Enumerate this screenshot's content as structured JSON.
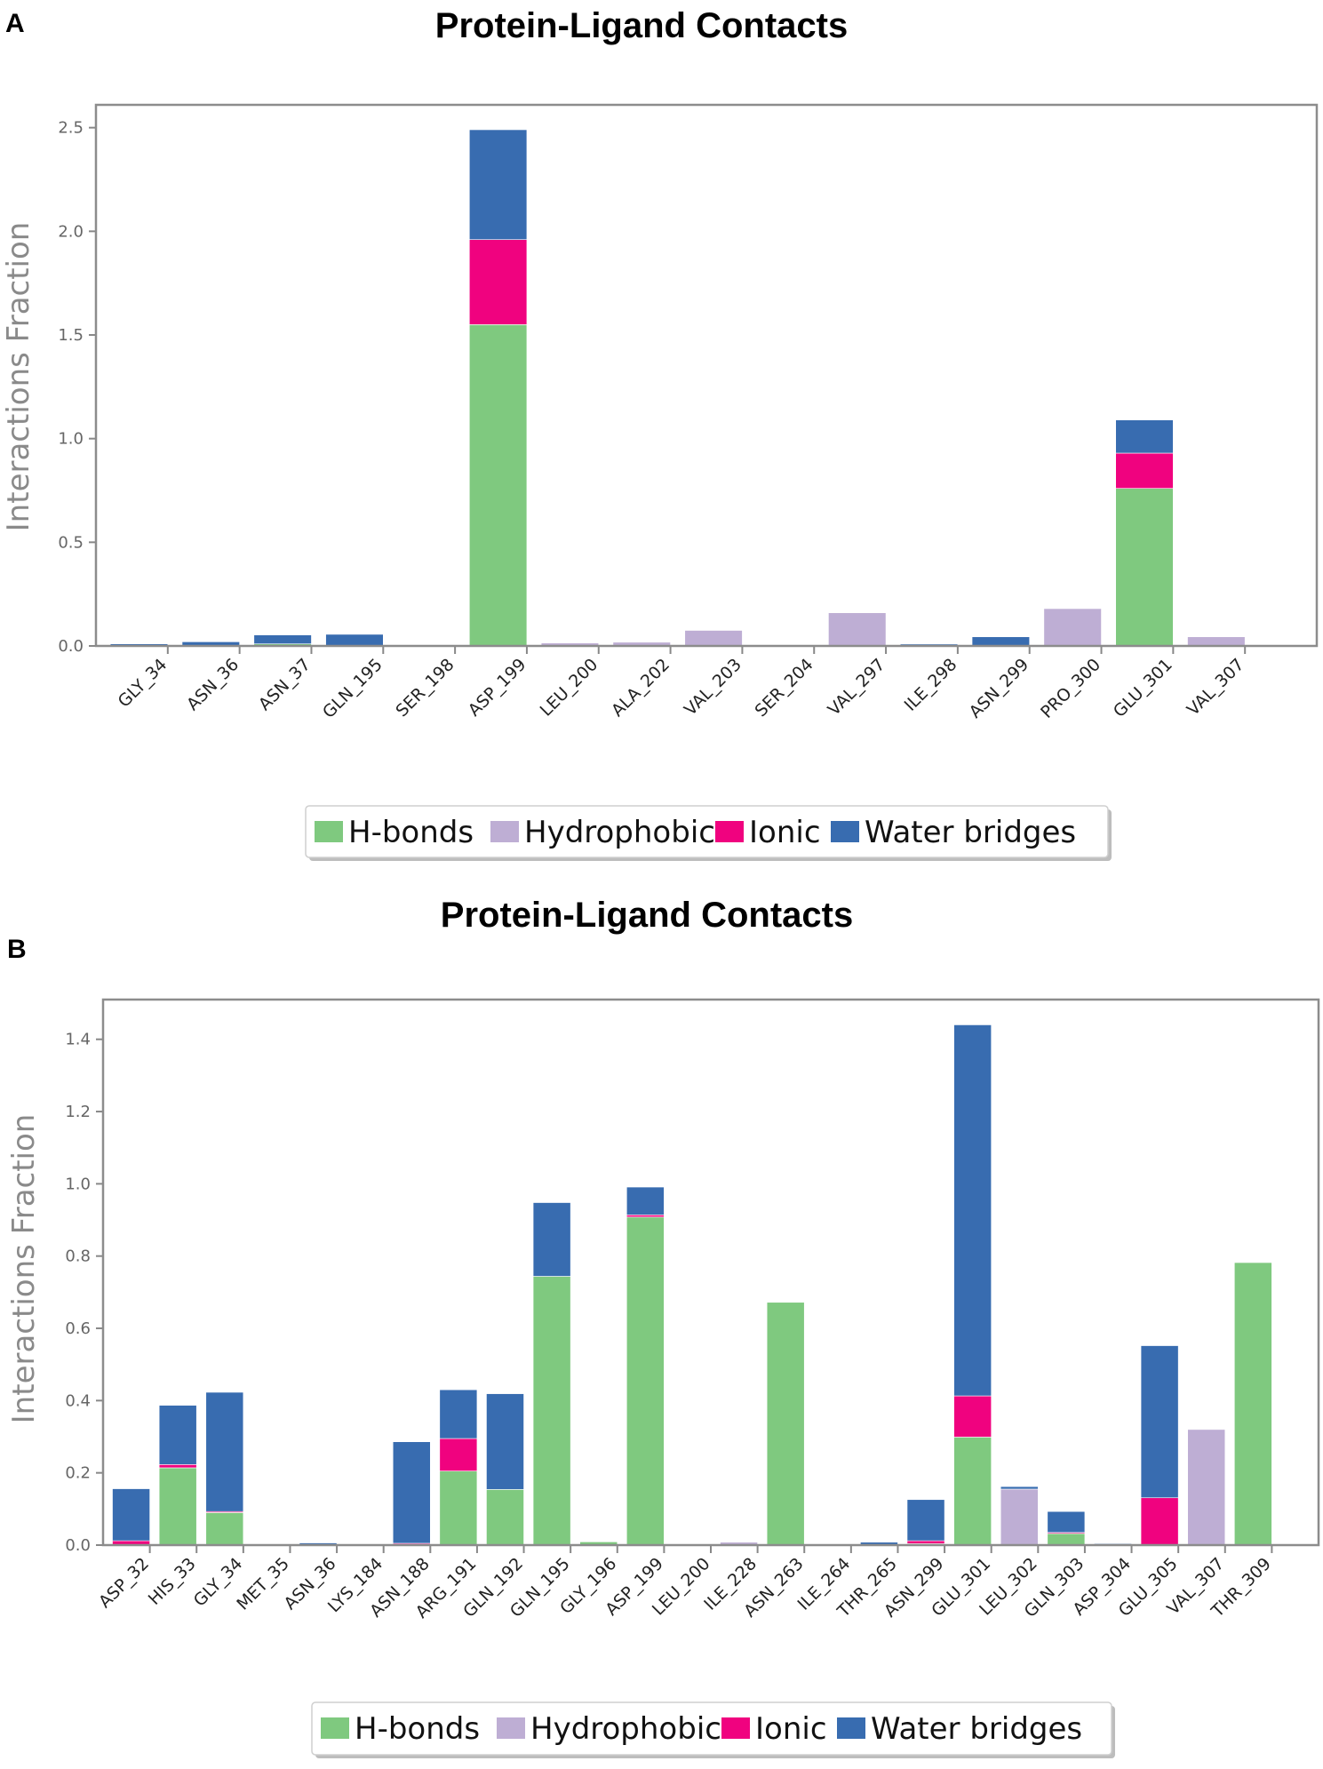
{
  "chart_data": [
    {
      "panel": "A",
      "type": "bar",
      "stacked": true,
      "title": "Protein-Ligand Contacts",
      "xlabel": "",
      "ylabel": "Interactions Fraction",
      "ylim": [
        0,
        2.61
      ],
      "yticks": [
        "0.0",
        "0.5",
        "1.0",
        "1.5",
        "2.0",
        "2.5"
      ],
      "ytick_values": [
        0,
        0.5,
        1.0,
        1.5,
        2.0,
        2.5
      ],
      "legend_position": "bottom-center",
      "categories": [
        "GLY_34",
        "ASN_36",
        "ASN_37",
        "GLN_195",
        "SER_198",
        "ASP_199",
        "LEU_200",
        "ALA_202",
        "VAL_203",
        "SER_204",
        "VAL_297",
        "ILE_298",
        "ASN_299",
        "PRO_300",
        "GLU_301",
        "VAL_307"
      ],
      "series": [
        {
          "name": "H-bonds",
          "color": "#7fc97f",
          "values": [
            0,
            0,
            0.01,
            0,
            0,
            1.55,
            0,
            0,
            0,
            0,
            0,
            0,
            0,
            0,
            0.76,
            0
          ]
        },
        {
          "name": "Hydrophobic",
          "color": "#beaed4",
          "values": [
            0,
            0,
            0,
            0,
            0.005,
            0,
            0.014,
            0.018,
            0.075,
            0.005,
            0.16,
            0,
            0,
            0.18,
            0,
            0.044
          ]
        },
        {
          "name": "Ionic",
          "color": "#f0027f",
          "values": [
            0,
            0,
            0,
            0,
            0,
            0.41,
            0,
            0,
            0,
            0,
            0,
            0,
            0,
            0,
            0.17,
            0
          ]
        },
        {
          "name": "Water bridges",
          "color": "#386cb0",
          "values": [
            0.01,
            0.02,
            0.043,
            0.056,
            0,
            0.53,
            0,
            0,
            0,
            0,
            0,
            0.009,
            0.044,
            0,
            0.16,
            0
          ]
        }
      ]
    },
    {
      "panel": "B",
      "type": "bar",
      "stacked": true,
      "title": "Protein-Ligand Contacts",
      "xlabel": "",
      "ylabel": "Interactions Fraction",
      "ylim": [
        0,
        1.51
      ],
      "yticks": [
        "0.0",
        "0.2",
        "0.4",
        "0.6",
        "0.8",
        "1.0",
        "1.2",
        "1.4"
      ],
      "ytick_values": [
        0,
        0.2,
        0.4,
        0.6,
        0.8,
        1.0,
        1.2,
        1.4
      ],
      "legend_position": "bottom-center",
      "categories": [
        "ASP_32",
        "HIS_33",
        "GLY_34",
        "MET_35",
        "ASN_36",
        "LYS_184",
        "ASN_188",
        "ARG_191",
        "GLN_192",
        "GLN_195",
        "GLY_196",
        "ASP_199",
        "LEU_200",
        "ILE_228",
        "ASN_263",
        "ILE_264",
        "THR_265",
        "ASN_299",
        "GLU_301",
        "LEU_302",
        "GLN_303",
        "ASP_304",
        "GLU_305",
        "VAL_307",
        "THR_309"
      ],
      "series": [
        {
          "name": "H-bonds",
          "color": "#7fc97f",
          "values": [
            0,
            0.214,
            0.09,
            0,
            0,
            0,
            0,
            0.205,
            0.154,
            0.744,
            0.009,
            0.908,
            0,
            0,
            0.672,
            0,
            0,
            0.004,
            0.299,
            0,
            0.032,
            0,
            0,
            0,
            0.782
          ]
        },
        {
          "name": "Hydrophobic",
          "color": "#beaed4",
          "values": [
            0,
            0,
            0,
            0,
            0,
            0,
            0,
            0,
            0,
            0,
            0,
            0,
            0,
            0.008,
            0,
            0,
            0,
            0,
            0,
            0.155,
            0,
            0,
            0,
            0.32,
            0
          ]
        },
        {
          "name": "Ionic",
          "color": "#f0027f",
          "values": [
            0.012,
            0.009,
            0.003,
            0,
            0,
            0,
            0.005,
            0.09,
            0,
            0,
            0,
            0.006,
            0,
            0,
            0,
            0,
            0,
            0.008,
            0.114,
            0,
            0.003,
            0,
            0.131,
            0,
            0
          ]
        },
        {
          "name": "Water bridges",
          "color": "#386cb0",
          "values": [
            0.144,
            0.164,
            0.33,
            0.003,
            0.006,
            0.003,
            0.281,
            0.135,
            0.265,
            0.204,
            0,
            0.077,
            0,
            0,
            0,
            0,
            0.008,
            0.114,
            1.027,
            0.007,
            0.058,
            0.004,
            0.421,
            0,
            0
          ]
        }
      ]
    }
  ]
}
